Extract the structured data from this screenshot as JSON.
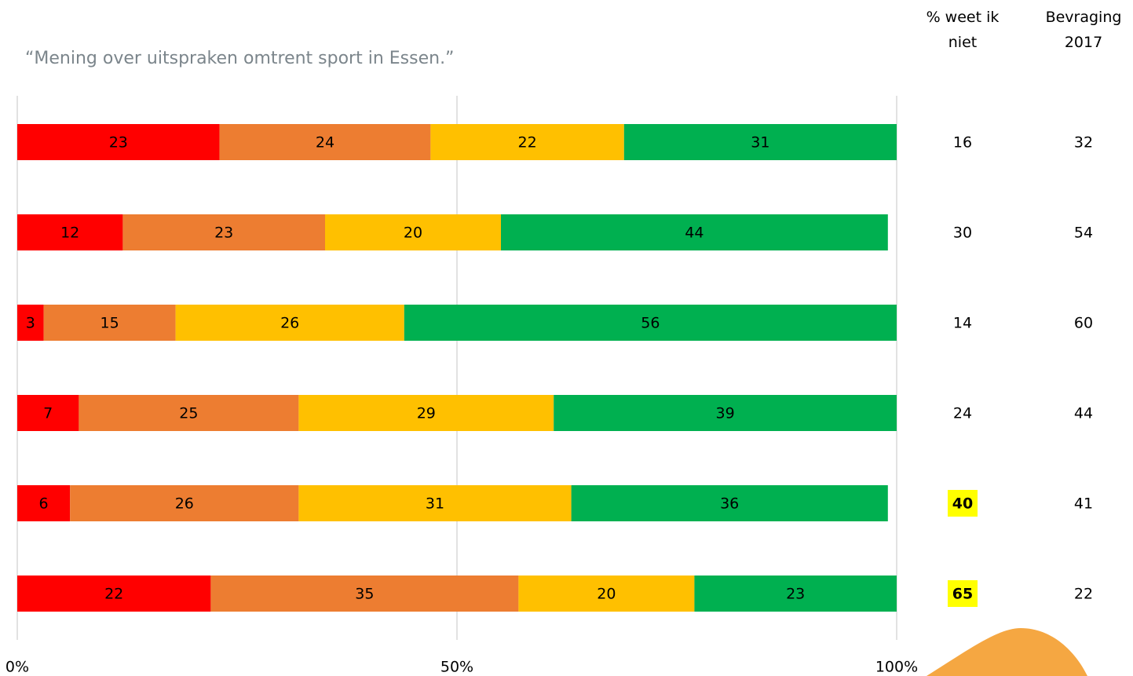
{
  "chart_data": {
    "type": "stacked-bar-horizontal",
    "title": "“Mening over uitspraken omtrent sport in Essen.”",
    "categories": [
      null,
      null,
      null,
      null,
      null,
      null
    ],
    "series": [
      {
        "color": "#ff0000",
        "values": [
          23,
          12,
          3,
          7,
          6,
          22
        ]
      },
      {
        "color": "#ed7d31",
        "values": [
          24,
          23,
          15,
          25,
          26,
          35
        ]
      },
      {
        "color": "#ffc000",
        "values": [
          22,
          20,
          26,
          29,
          31,
          20
        ]
      },
      {
        "color": "#00b050",
        "values": [
          31,
          44,
          56,
          39,
          36,
          23
        ]
      }
    ],
    "xlim": [
      0,
      100
    ],
    "xticks": [
      {
        "value": 0,
        "label": "0%"
      },
      {
        "value": 50,
        "label": "50%"
      },
      {
        "value": 100,
        "label": "100%"
      }
    ],
    "grid": true,
    "columns": [
      {
        "header": "% weet ik niet",
        "values": [
          16,
          30,
          14,
          24,
          40,
          65
        ],
        "highlight": [
          false,
          false,
          false,
          false,
          true,
          true
        ]
      },
      {
        "header": "Bevraging 2017",
        "values": [
          32,
          54,
          60,
          44,
          41,
          22
        ]
      }
    ]
  }
}
